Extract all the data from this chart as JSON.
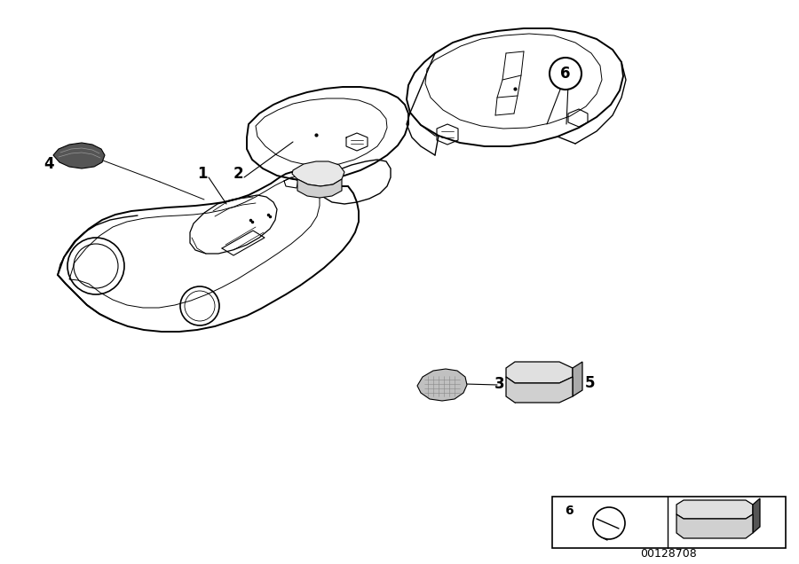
{
  "bg_color": "#ffffff",
  "fig_width": 9.0,
  "fig_height": 6.36,
  "dpi": 100,
  "diagram_num": "00128708",
  "line_color": "#000000",
  "text_color": "#000000"
}
